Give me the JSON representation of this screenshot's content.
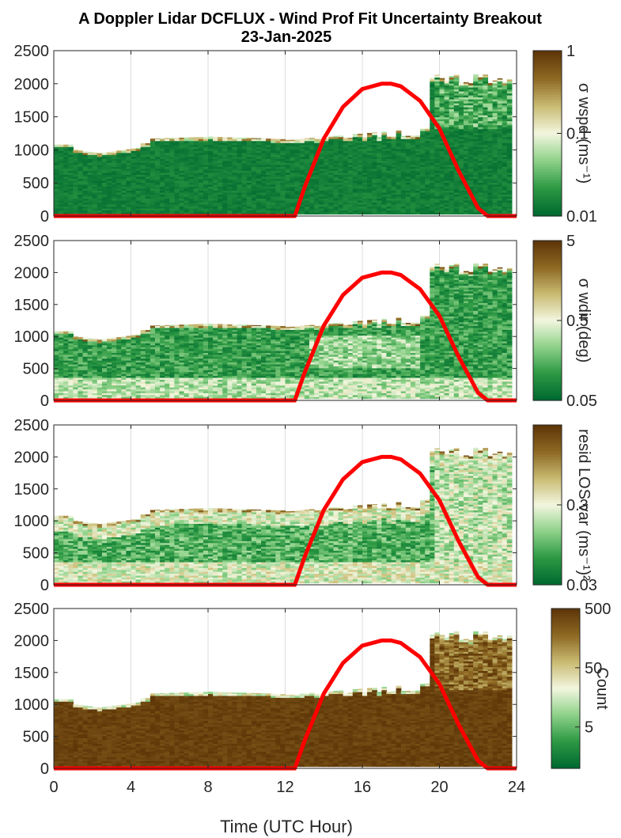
{
  "figure": {
    "title_line1": "A Doppler Lidar DCFLUX - Wind Prof Fit Uncertainty Breakout",
    "title_line2": "23-Jan-2025",
    "xlabel": "Time (UTC Hour)",
    "xticks": [
      "0",
      "4",
      "8",
      "12",
      "16",
      "20",
      "24"
    ],
    "yticks": [
      "0",
      "500",
      "1000",
      "1500",
      "2000",
      "2500"
    ]
  },
  "colors": {
    "sun_curve": "#ff0000",
    "colormap": [
      "#006b30",
      "#2e9a44",
      "#8fd28a",
      "#f3f6df",
      "#c9bb72",
      "#8e6a24",
      "#5e3608"
    ]
  },
  "chart_data": [
    {
      "type": "heatmap",
      "panel": "wspd uncertainty",
      "xlim": [
        0,
        24
      ],
      "ylim": [
        0,
        2500
      ],
      "colorbar": {
        "label": "σ wspd (ms⁻¹)",
        "ticks": [
          "1",
          "0.1",
          "0.01"
        ],
        "scale": "log",
        "range": [
          0.01,
          1
        ]
      },
      "overlay_line": {
        "x": [
          0,
          12.5,
          13,
          14,
          15,
          16,
          17,
          17.5,
          18,
          19,
          20,
          21,
          22,
          22.5,
          24
        ],
        "y": [
          0,
          0,
          430,
          1170,
          1650,
          1920,
          2000,
          2000,
          1960,
          1740,
          1320,
          680,
          120,
          0,
          0
        ]
      }
    },
    {
      "type": "heatmap",
      "panel": "wdir uncertainty",
      "xlim": [
        0,
        24
      ],
      "ylim": [
        0,
        2500
      ],
      "colorbar": {
        "label": "σ wdir (deg)",
        "ticks": [
          "5",
          "0.5",
          "0.05"
        ],
        "scale": "log",
        "range": [
          0.05,
          5
        ]
      },
      "overlay_line": {
        "x": [
          0,
          12.5,
          13,
          14,
          15,
          16,
          17,
          17.5,
          18,
          19,
          20,
          21,
          22,
          22.5,
          24
        ],
        "y": [
          0,
          0,
          430,
          1170,
          1650,
          1920,
          2000,
          2000,
          1960,
          1740,
          1320,
          680,
          120,
          0,
          0
        ]
      }
    },
    {
      "type": "heatmap",
      "panel": "residual LOS variance",
      "xlim": [
        0,
        24
      ],
      "ylim": [
        0,
        2500
      ],
      "colorbar": {
        "label": "resid LOS var (ms⁻¹)²",
        "ticks": [
          "0.3",
          "0.03"
        ],
        "scale": "log",
        "range": [
          0.03,
          3
        ]
      },
      "overlay_line": {
        "x": [
          0,
          12.5,
          13,
          14,
          15,
          16,
          17,
          17.5,
          18,
          19,
          20,
          21,
          22,
          22.5,
          24
        ],
        "y": [
          0,
          0,
          430,
          1170,
          1650,
          1920,
          2000,
          2000,
          1960,
          1740,
          1320,
          680,
          120,
          0,
          0
        ]
      }
    },
    {
      "type": "heatmap",
      "panel": "count",
      "xlim": [
        0,
        24
      ],
      "ylim": [
        0,
        2500
      ],
      "colorbar": {
        "label": "Count",
        "ticks": [
          "500",
          "50",
          "5"
        ],
        "scale": "log",
        "range": [
          1,
          500
        ]
      },
      "overlay_line": {
        "x": [
          0,
          12.5,
          13,
          14,
          15,
          16,
          17,
          17.5,
          18,
          19,
          20,
          21,
          22,
          22.5,
          24
        ],
        "y": [
          0,
          0,
          430,
          1170,
          1650,
          1920,
          2000,
          2000,
          1960,
          1740,
          1320,
          680,
          120,
          0,
          0
        ]
      }
    }
  ]
}
